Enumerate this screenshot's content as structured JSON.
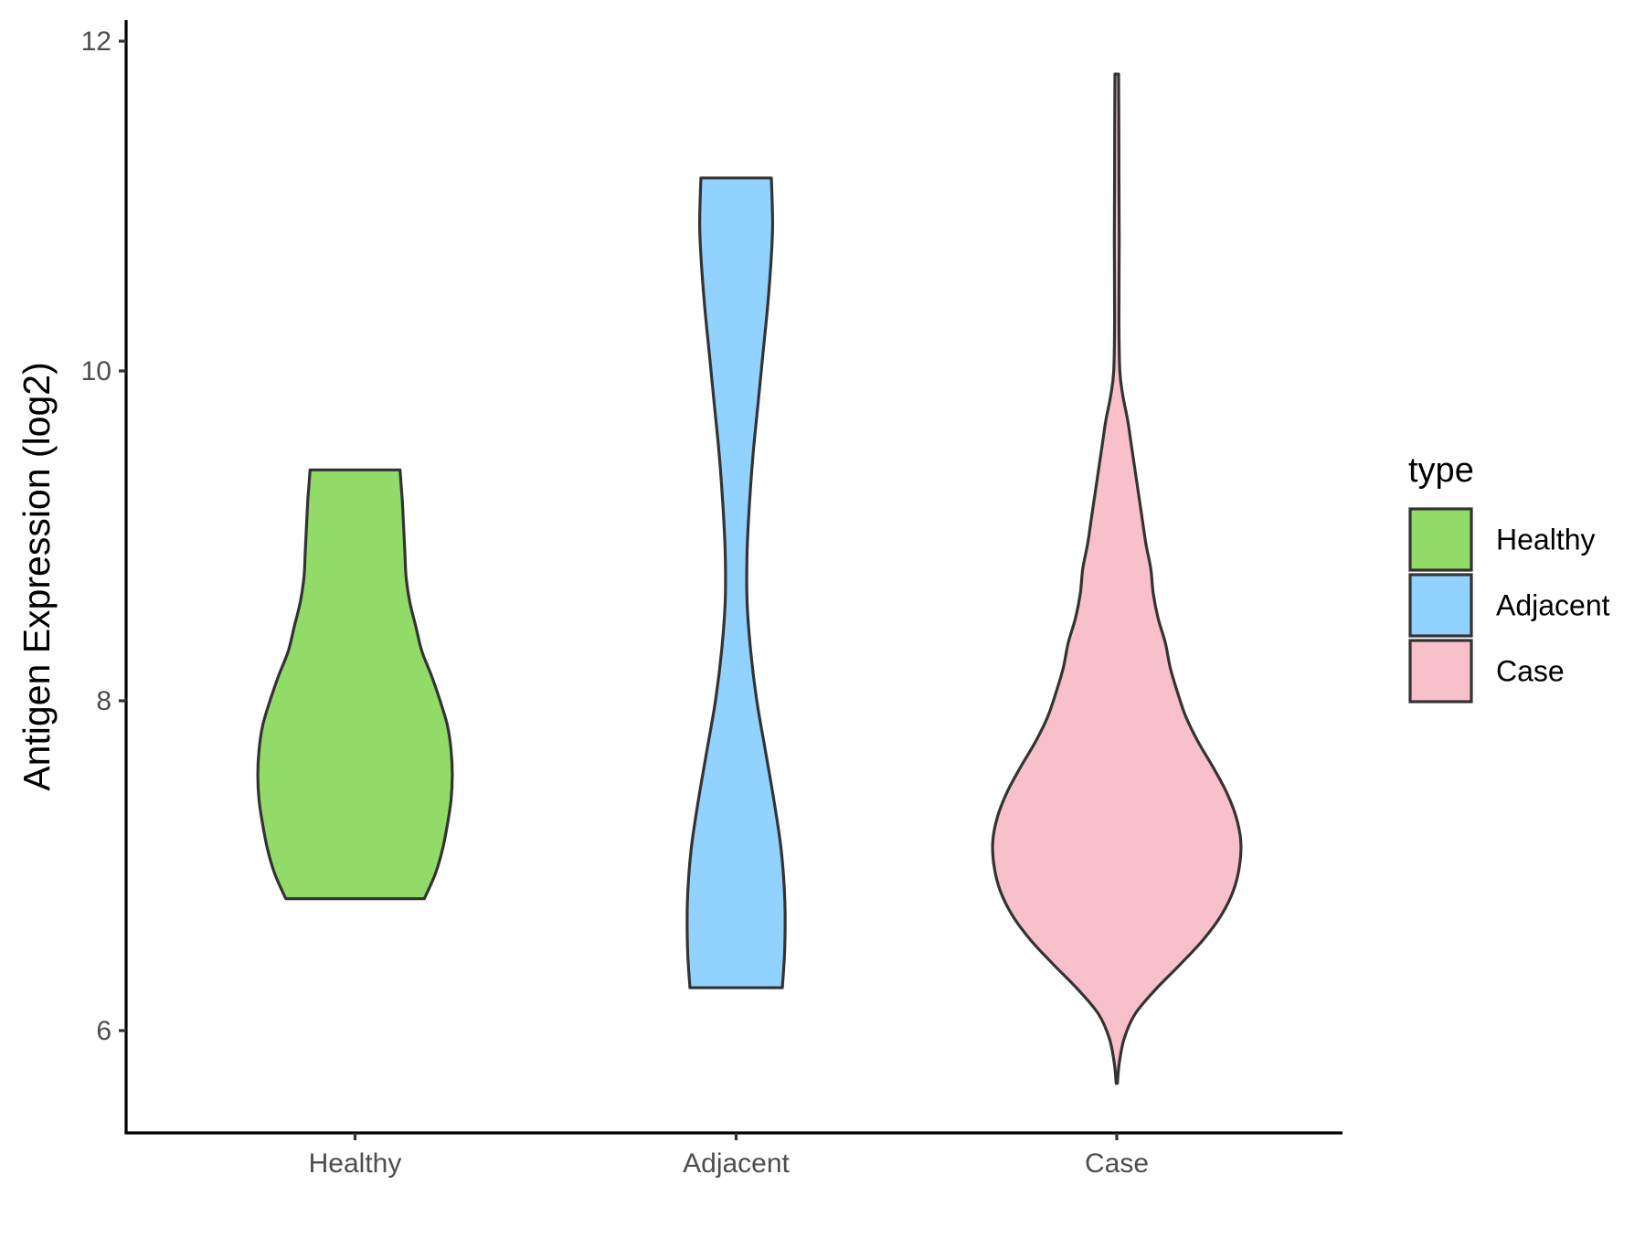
{
  "chart_data": {
    "type": "violin",
    "title": "",
    "xlabel": "",
    "ylabel": "Antigen Expression (log2)",
    "ylim": [
      5.35,
      12.12
    ],
    "yticks": [
      6,
      8,
      10,
      12
    ],
    "categories": [
      "Healthy",
      "Adjacent",
      "Case"
    ],
    "grid": false,
    "legend": {
      "title": "type",
      "placement": "right",
      "entries": [
        {
          "label": "Healthy",
          "color": "#93DB69"
        },
        {
          "label": "Adjacent",
          "color": "#92D2FF"
        },
        {
          "label": "Case",
          "color": "#F7C0CB"
        }
      ]
    },
    "series": [
      {
        "category": "Healthy",
        "color": "#93DB69",
        "min": 6.8,
        "max": 9.4,
        "density": [
          [
            6.8,
            0.57
          ],
          [
            6.95,
            0.66
          ],
          [
            7.1,
            0.72
          ],
          [
            7.25,
            0.76
          ],
          [
            7.4,
            0.79
          ],
          [
            7.55,
            0.8
          ],
          [
            7.7,
            0.79
          ],
          [
            7.85,
            0.76
          ],
          [
            8.0,
            0.7
          ],
          [
            8.15,
            0.63
          ],
          [
            8.3,
            0.55
          ],
          [
            8.45,
            0.5
          ],
          [
            8.6,
            0.45
          ],
          [
            8.75,
            0.42
          ],
          [
            8.9,
            0.41
          ],
          [
            9.05,
            0.4
          ],
          [
            9.2,
            0.39
          ],
          [
            9.3,
            0.38
          ],
          [
            9.4,
            0.37
          ]
        ]
      },
      {
        "category": "Adjacent",
        "color": "#92D2FF",
        "min": 6.26,
        "max": 11.17,
        "density": [
          [
            6.26,
            0.38
          ],
          [
            6.5,
            0.4
          ],
          [
            6.8,
            0.4
          ],
          [
            7.1,
            0.37
          ],
          [
            7.4,
            0.31
          ],
          [
            7.7,
            0.24
          ],
          [
            8.0,
            0.17
          ],
          [
            8.3,
            0.12
          ],
          [
            8.6,
            0.09
          ],
          [
            8.9,
            0.09
          ],
          [
            9.2,
            0.11
          ],
          [
            9.5,
            0.14
          ],
          [
            9.8,
            0.18
          ],
          [
            10.1,
            0.22
          ],
          [
            10.4,
            0.26
          ],
          [
            10.7,
            0.29
          ],
          [
            10.9,
            0.3
          ],
          [
            11.17,
            0.29
          ]
        ]
      },
      {
        "category": "Case",
        "color": "#F7C0CB",
        "min": 5.68,
        "max": 11.8,
        "density": [
          [
            5.68,
            0.005
          ],
          [
            5.8,
            0.02
          ],
          [
            5.95,
            0.06
          ],
          [
            6.1,
            0.15
          ],
          [
            6.25,
            0.32
          ],
          [
            6.4,
            0.52
          ],
          [
            6.55,
            0.71
          ],
          [
            6.7,
            0.86
          ],
          [
            6.85,
            0.96
          ],
          [
            7.0,
            1.01
          ],
          [
            7.15,
            1.02
          ],
          [
            7.3,
            0.98
          ],
          [
            7.45,
            0.9
          ],
          [
            7.6,
            0.79
          ],
          [
            7.75,
            0.67
          ],
          [
            7.9,
            0.57
          ],
          [
            8.05,
            0.5
          ],
          [
            8.2,
            0.44
          ],
          [
            8.35,
            0.4
          ],
          [
            8.5,
            0.34
          ],
          [
            8.65,
            0.3
          ],
          [
            8.8,
            0.28
          ],
          [
            8.95,
            0.24
          ],
          [
            9.1,
            0.21
          ],
          [
            9.25,
            0.18
          ],
          [
            9.4,
            0.15
          ],
          [
            9.55,
            0.12
          ],
          [
            9.7,
            0.09
          ],
          [
            9.85,
            0.05
          ],
          [
            10.0,
            0.025
          ],
          [
            10.3,
            0.018
          ],
          [
            10.8,
            0.02
          ],
          [
            11.2,
            0.018
          ],
          [
            11.5,
            0.017
          ],
          [
            11.8,
            0.015
          ]
        ]
      }
    ]
  }
}
